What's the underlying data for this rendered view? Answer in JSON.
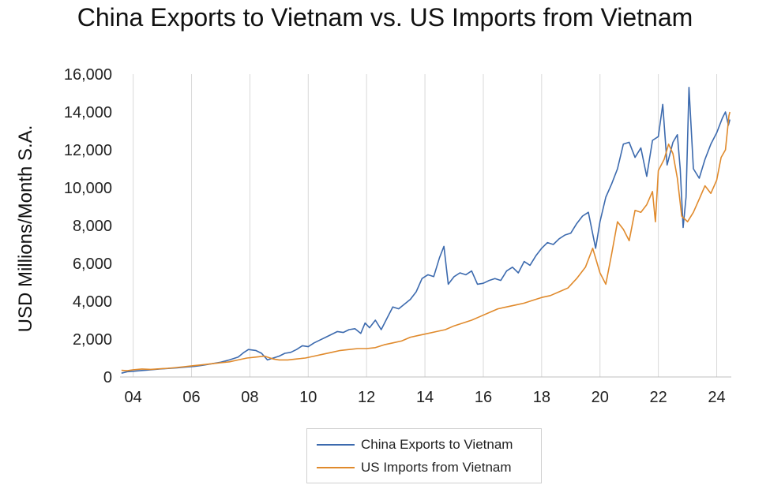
{
  "chart_data": {
    "type": "line",
    "title": "China Exports to Vietnam vs. US Imports from Vietnam",
    "ylabel": "USD Millions/Month S.A.",
    "xlabel": "",
    "x_tick_labels": [
      "04",
      "06",
      "08",
      "10",
      "12",
      "14",
      "16",
      "18",
      "20",
      "22",
      "24"
    ],
    "x_tick_years": [
      2004,
      2006,
      2008,
      2010,
      2012,
      2014,
      2016,
      2018,
      2020,
      2022,
      2024
    ],
    "y_tick_labels": [
      "0",
      "2,000",
      "4,000",
      "6,000",
      "8,000",
      "10,000",
      "12,000",
      "14,000",
      "16,000"
    ],
    "y_tick_values": [
      0,
      2000,
      4000,
      6000,
      8000,
      10000,
      12000,
      14000,
      16000
    ],
    "xlim": [
      2003.55,
      2024.5
    ],
    "ylim": [
      0,
      16000
    ],
    "grid": "vertical",
    "legend_position": "bottom",
    "series": [
      {
        "name": "China Exports to Vietnam",
        "color": "#3C6AAE",
        "points": [
          [
            2003.6,
            200
          ],
          [
            2003.8,
            280
          ],
          [
            2004.0,
            300
          ],
          [
            2004.3,
            340
          ],
          [
            2004.6,
            380
          ],
          [
            2004.9,
            420
          ],
          [
            2005.2,
            450
          ],
          [
            2005.5,
            480
          ],
          [
            2005.8,
            520
          ],
          [
            2006.1,
            560
          ],
          [
            2006.4,
            620
          ],
          [
            2006.7,
            700
          ],
          [
            2007.0,
            780
          ],
          [
            2007.3,
            900
          ],
          [
            2007.6,
            1050
          ],
          [
            2007.8,
            1300
          ],
          [
            2007.95,
            1450
          ],
          [
            2008.2,
            1400
          ],
          [
            2008.4,
            1250
          ],
          [
            2008.6,
            900
          ],
          [
            2008.8,
            1000
          ],
          [
            2009.0,
            1100
          ],
          [
            2009.2,
            1250
          ],
          [
            2009.4,
            1300
          ],
          [
            2009.6,
            1450
          ],
          [
            2009.8,
            1650
          ],
          [
            2010.0,
            1600
          ],
          [
            2010.2,
            1800
          ],
          [
            2010.4,
            1950
          ],
          [
            2010.6,
            2100
          ],
          [
            2010.8,
            2250
          ],
          [
            2011.0,
            2400
          ],
          [
            2011.2,
            2350
          ],
          [
            2011.4,
            2500
          ],
          [
            2011.6,
            2550
          ],
          [
            2011.8,
            2300
          ],
          [
            2011.95,
            2850
          ],
          [
            2012.1,
            2600
          ],
          [
            2012.3,
            3000
          ],
          [
            2012.5,
            2500
          ],
          [
            2012.7,
            3100
          ],
          [
            2012.9,
            3700
          ],
          [
            2013.1,
            3600
          ],
          [
            2013.3,
            3850
          ],
          [
            2013.5,
            4100
          ],
          [
            2013.7,
            4500
          ],
          [
            2013.9,
            5200
          ],
          [
            2014.1,
            5400
          ],
          [
            2014.3,
            5300
          ],
          [
            2014.5,
            6300
          ],
          [
            2014.65,
            6900
          ],
          [
            2014.8,
            4900
          ],
          [
            2015.0,
            5300
          ],
          [
            2015.2,
            5500
          ],
          [
            2015.4,
            5400
          ],
          [
            2015.6,
            5600
          ],
          [
            2015.8,
            4900
          ],
          [
            2016.0,
            4950
          ],
          [
            2016.2,
            5100
          ],
          [
            2016.4,
            5200
          ],
          [
            2016.6,
            5100
          ],
          [
            2016.8,
            5600
          ],
          [
            2017.0,
            5800
          ],
          [
            2017.2,
            5500
          ],
          [
            2017.4,
            6100
          ],
          [
            2017.6,
            5900
          ],
          [
            2017.8,
            6400
          ],
          [
            2018.0,
            6800
          ],
          [
            2018.2,
            7100
          ],
          [
            2018.4,
            7000
          ],
          [
            2018.6,
            7300
          ],
          [
            2018.8,
            7500
          ],
          [
            2019.0,
            7600
          ],
          [
            2019.2,
            8100
          ],
          [
            2019.4,
            8500
          ],
          [
            2019.6,
            8700
          ],
          [
            2019.85,
            6800
          ],
          [
            2020.0,
            8200
          ],
          [
            2020.2,
            9500
          ],
          [
            2020.4,
            10200
          ],
          [
            2020.6,
            11000
          ],
          [
            2020.8,
            12300
          ],
          [
            2021.0,
            12400
          ],
          [
            2021.2,
            11600
          ],
          [
            2021.4,
            12100
          ],
          [
            2021.6,
            10600
          ],
          [
            2021.8,
            12500
          ],
          [
            2022.0,
            12700
          ],
          [
            2022.15,
            14400
          ],
          [
            2022.3,
            11200
          ],
          [
            2022.5,
            12400
          ],
          [
            2022.65,
            12800
          ],
          [
            2022.75,
            11000
          ],
          [
            2022.85,
            7900
          ],
          [
            2022.95,
            9500
          ],
          [
            2023.05,
            15300
          ],
          [
            2023.2,
            11000
          ],
          [
            2023.4,
            10500
          ],
          [
            2023.6,
            11500
          ],
          [
            2023.8,
            12300
          ],
          [
            2024.0,
            12900
          ],
          [
            2024.2,
            13700
          ],
          [
            2024.3,
            14000
          ],
          [
            2024.4,
            13300
          ],
          [
            2024.45,
            13600
          ]
        ]
      },
      {
        "name": "US Imports from Vietnam",
        "color": "#E08A2C",
        "points": [
          [
            2003.6,
            350
          ],
          [
            2003.8,
            330
          ],
          [
            2004.0,
            380
          ],
          [
            2004.3,
            420
          ],
          [
            2004.6,
            400
          ],
          [
            2004.9,
            430
          ],
          [
            2005.2,
            460
          ],
          [
            2005.5,
            500
          ],
          [
            2005.8,
            550
          ],
          [
            2006.1,
            600
          ],
          [
            2006.4,
            650
          ],
          [
            2006.7,
            700
          ],
          [
            2007.0,
            750
          ],
          [
            2007.3,
            800
          ],
          [
            2007.6,
            900
          ],
          [
            2007.9,
            1000
          ],
          [
            2008.2,
            1050
          ],
          [
            2008.5,
            1100
          ],
          [
            2008.8,
            950
          ],
          [
            2009.0,
            900
          ],
          [
            2009.3,
            900
          ],
          [
            2009.6,
            950
          ],
          [
            2009.9,
            1000
          ],
          [
            2010.2,
            1100
          ],
          [
            2010.5,
            1200
          ],
          [
            2010.8,
            1300
          ],
          [
            2011.1,
            1400
          ],
          [
            2011.4,
            1450
          ],
          [
            2011.7,
            1500
          ],
          [
            2012.0,
            1500
          ],
          [
            2012.3,
            1550
          ],
          [
            2012.6,
            1700
          ],
          [
            2012.9,
            1800
          ],
          [
            2013.2,
            1900
          ],
          [
            2013.5,
            2100
          ],
          [
            2013.8,
            2200
          ],
          [
            2014.1,
            2300
          ],
          [
            2014.4,
            2400
          ],
          [
            2014.7,
            2500
          ],
          [
            2015.0,
            2700
          ],
          [
            2015.3,
            2850
          ],
          [
            2015.6,
            3000
          ],
          [
            2015.9,
            3200
          ],
          [
            2016.2,
            3400
          ],
          [
            2016.5,
            3600
          ],
          [
            2016.8,
            3700
          ],
          [
            2017.1,
            3800
          ],
          [
            2017.4,
            3900
          ],
          [
            2017.7,
            4050
          ],
          [
            2018.0,
            4200
          ],
          [
            2018.3,
            4300
          ],
          [
            2018.6,
            4500
          ],
          [
            2018.9,
            4700
          ],
          [
            2019.2,
            5200
          ],
          [
            2019.5,
            5800
          ],
          [
            2019.75,
            6800
          ],
          [
            2020.0,
            5500
          ],
          [
            2020.2,
            4900
          ],
          [
            2020.4,
            6500
          ],
          [
            2020.6,
            8200
          ],
          [
            2020.8,
            7800
          ],
          [
            2021.0,
            7200
          ],
          [
            2021.2,
            8800
          ],
          [
            2021.4,
            8700
          ],
          [
            2021.6,
            9100
          ],
          [
            2021.8,
            9800
          ],
          [
            2021.9,
            8200
          ],
          [
            2022.0,
            10900
          ],
          [
            2022.2,
            11500
          ],
          [
            2022.35,
            12300
          ],
          [
            2022.5,
            11800
          ],
          [
            2022.65,
            10500
          ],
          [
            2022.8,
            8500
          ],
          [
            2023.0,
            8200
          ],
          [
            2023.2,
            8700
          ],
          [
            2023.4,
            9400
          ],
          [
            2023.6,
            10100
          ],
          [
            2023.8,
            9700
          ],
          [
            2024.0,
            10400
          ],
          [
            2024.15,
            11600
          ],
          [
            2024.3,
            12000
          ],
          [
            2024.42,
            13800
          ],
          [
            2024.45,
            14000
          ]
        ]
      }
    ]
  }
}
